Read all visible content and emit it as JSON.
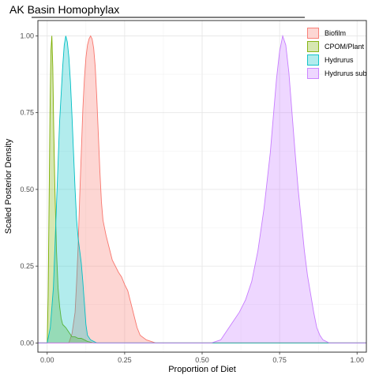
{
  "chart_data": {
    "type": "area",
    "title": "AK Basin Homophylax",
    "xlabel": "Proportion of Diet",
    "ylabel": "Scaled Posterior Density",
    "xlim": [
      -0.03,
      1.03
    ],
    "ylim": [
      -0.03,
      1.05
    ],
    "x_ticks": [
      0.0,
      0.25,
      0.5,
      0.75,
      1.0
    ],
    "x_tick_labels": [
      "0.00",
      "0.25",
      "0.50",
      "0.75",
      "1.00"
    ],
    "y_ticks": [
      0.0,
      0.25,
      0.5,
      0.75,
      1.0
    ],
    "y_tick_labels": [
      "0.00",
      "0.25",
      "0.50",
      "0.75",
      "1.00"
    ],
    "grid": true,
    "legend_position": "top-right",
    "series": [
      {
        "name": "Biofilm",
        "fill": "#F8766D",
        "points": [
          [
            0.07,
            0.0
          ],
          [
            0.08,
            0.03
          ],
          [
            0.09,
            0.1
          ],
          [
            0.095,
            0.2
          ],
          [
            0.1,
            0.32
          ],
          [
            0.105,
            0.48
          ],
          [
            0.11,
            0.62
          ],
          [
            0.115,
            0.76
          ],
          [
            0.12,
            0.86
          ],
          [
            0.125,
            0.93
          ],
          [
            0.13,
            0.97
          ],
          [
            0.135,
            0.99
          ],
          [
            0.14,
            1.0
          ],
          [
            0.145,
            0.99
          ],
          [
            0.15,
            0.96
          ],
          [
            0.155,
            0.9
          ],
          [
            0.16,
            0.8
          ],
          [
            0.165,
            0.68
          ],
          [
            0.17,
            0.56
          ],
          [
            0.175,
            0.46
          ],
          [
            0.18,
            0.4
          ],
          [
            0.19,
            0.35
          ],
          [
            0.2,
            0.31
          ],
          [
            0.21,
            0.27
          ],
          [
            0.22,
            0.25
          ],
          [
            0.23,
            0.23
          ],
          [
            0.24,
            0.215
          ],
          [
            0.25,
            0.19
          ],
          [
            0.26,
            0.17
          ],
          [
            0.27,
            0.13
          ],
          [
            0.28,
            0.09
          ],
          [
            0.29,
            0.05
          ],
          [
            0.3,
            0.025
          ],
          [
            0.32,
            0.01
          ],
          [
            0.35,
            0.0
          ]
        ]
      },
      {
        "name": "CPOM/Plant",
        "fill": "#7CAE00",
        "points": [
          [
            0.0,
            0.0
          ],
          [
            0.003,
            0.15
          ],
          [
            0.006,
            0.45
          ],
          [
            0.009,
            0.75
          ],
          [
            0.012,
            0.95
          ],
          [
            0.015,
            1.0
          ],
          [
            0.018,
            0.9
          ],
          [
            0.021,
            0.7
          ],
          [
            0.025,
            0.5
          ],
          [
            0.03,
            0.3
          ],
          [
            0.035,
            0.18
          ],
          [
            0.04,
            0.12
          ],
          [
            0.045,
            0.08
          ],
          [
            0.05,
            0.06
          ],
          [
            0.06,
            0.05
          ],
          [
            0.07,
            0.035
          ],
          [
            0.08,
            0.02
          ],
          [
            0.09,
            0.02
          ],
          [
            0.1,
            0.015
          ],
          [
            0.11,
            0.015
          ],
          [
            0.12,
            0.01
          ],
          [
            0.13,
            0.005
          ],
          [
            0.15,
            0.0
          ]
        ]
      },
      {
        "name": "Hydrurus",
        "fill": "#00BFC4",
        "points": [
          [
            0.0,
            0.0
          ],
          [
            0.01,
            0.05
          ],
          [
            0.02,
            0.18
          ],
          [
            0.03,
            0.45
          ],
          [
            0.04,
            0.72
          ],
          [
            0.05,
            0.9
          ],
          [
            0.055,
            0.97
          ],
          [
            0.06,
            1.0
          ],
          [
            0.065,
            0.98
          ],
          [
            0.07,
            0.93
          ],
          [
            0.075,
            0.85
          ],
          [
            0.08,
            0.74
          ],
          [
            0.085,
            0.62
          ],
          [
            0.09,
            0.5
          ],
          [
            0.095,
            0.4
          ],
          [
            0.1,
            0.34
          ],
          [
            0.105,
            0.3
          ],
          [
            0.11,
            0.26
          ],
          [
            0.115,
            0.2
          ],
          [
            0.12,
            0.13
          ],
          [
            0.125,
            0.06
          ],
          [
            0.13,
            0.025
          ],
          [
            0.14,
            0.01
          ],
          [
            0.16,
            0.0
          ]
        ]
      },
      {
        "name": "Hydrurus sub",
        "fill": "#C77CFF",
        "points": [
          [
            0.5,
            0.0
          ],
          [
            0.53,
            0.0
          ],
          [
            0.56,
            0.01
          ],
          [
            0.58,
            0.04
          ],
          [
            0.6,
            0.07
          ],
          [
            0.62,
            0.1
          ],
          [
            0.64,
            0.14
          ],
          [
            0.66,
            0.2
          ],
          [
            0.68,
            0.3
          ],
          [
            0.7,
            0.44
          ],
          [
            0.72,
            0.62
          ],
          [
            0.73,
            0.74
          ],
          [
            0.74,
            0.86
          ],
          [
            0.75,
            0.95
          ],
          [
            0.76,
            1.0
          ],
          [
            0.77,
            0.97
          ],
          [
            0.78,
            0.88
          ],
          [
            0.79,
            0.75
          ],
          [
            0.8,
            0.62
          ],
          [
            0.81,
            0.5
          ],
          [
            0.82,
            0.4
          ],
          [
            0.83,
            0.3
          ],
          [
            0.84,
            0.22
          ],
          [
            0.85,
            0.16
          ],
          [
            0.86,
            0.1
          ],
          [
            0.87,
            0.05
          ],
          [
            0.88,
            0.025
          ],
          [
            0.89,
            0.01
          ],
          [
            0.91,
            0.0
          ]
        ]
      }
    ]
  }
}
